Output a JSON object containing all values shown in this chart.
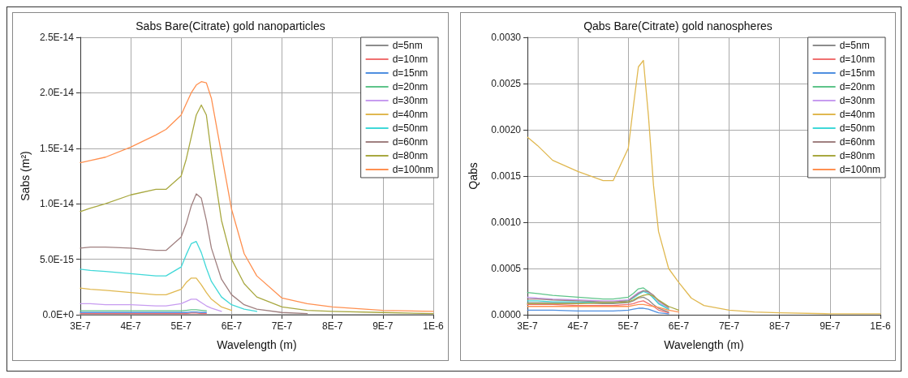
{
  "chart_data": [
    {
      "type": "line",
      "title": "Sabs Bare(Citrate) gold nanoparticles",
      "xlabel": "Wavelength (m)",
      "ylabel": "Sabs (m²)",
      "grid": true,
      "legend": "top right",
      "marker": "none",
      "line_style": "solid",
      "xlim": [
        3e-07,
        1e-06
      ],
      "xticks": [
        {
          "value": 3e-07,
          "label": "3E-7"
        },
        {
          "value": 4e-07,
          "label": "4E-7"
        },
        {
          "value": 5e-07,
          "label": "5E-7"
        },
        {
          "value": 6e-07,
          "label": "6E-7"
        },
        {
          "value": 7e-07,
          "label": "7E-7"
        },
        {
          "value": 8e-07,
          "label": "8E-7"
        },
        {
          "value": 9e-07,
          "label": "9E-7"
        },
        {
          "value": 1e-06,
          "label": "1E-6"
        }
      ],
      "ylim": [
        0,
        2.5e-14
      ],
      "yticks": [
        {
          "value": 0,
          "label": "0.0E+0"
        },
        {
          "value": 5e-15,
          "label": "5.0E-15"
        },
        {
          "value": 1e-14,
          "label": "1.0E-14"
        },
        {
          "value": 1.5e-14,
          "label": "1.5E-14"
        },
        {
          "value": 2e-14,
          "label": "2.0E-14"
        },
        {
          "value": 2.5e-14,
          "label": "2.5E-14"
        }
      ],
      "x": [
        3e-07,
        3.2e-07,
        3.5e-07,
        4e-07,
        4.5e-07,
        4.7e-07,
        5e-07,
        5.1e-07,
        5.2e-07,
        5.3e-07,
        5.4e-07,
        5.5e-07,
        5.6e-07,
        5.8e-07,
        6e-07,
        6.25e-07,
        6.5e-07,
        7e-07,
        7.5e-07,
        8e-07,
        9e-07,
        1e-06
      ],
      "series": [
        {
          "name": "d=5nm",
          "color": "#8c8c8c",
          "values": [
            0,
            0,
            0,
            0,
            0,
            0,
            0,
            0,
            0,
            0,
            0,
            0,
            0,
            0,
            0,
            0,
            0,
            0,
            0,
            0,
            0,
            0
          ]
        },
        {
          "name": "d=10nm",
          "color": "#f07070",
          "values": [
            1e-16,
            1e-16,
            1e-16,
            1e-16,
            1e-16,
            1e-16,
            1e-16,
            1e-16,
            1.5e-16,
            1.5e-16,
            1e-16,
            1e-16,
            null,
            null,
            null,
            null,
            null,
            null,
            null,
            null,
            null,
            null
          ]
        },
        {
          "name": "d=15nm",
          "color": "#4f8fe0",
          "values": [
            2e-16,
            2e-16,
            2e-16,
            2e-16,
            2e-16,
            2e-16,
            2e-16,
            2e-16,
            2.5e-16,
            2.5e-16,
            2e-16,
            2e-16,
            null,
            null,
            null,
            null,
            null,
            null,
            null,
            null,
            null,
            null
          ]
        },
        {
          "name": "d=20nm",
          "color": "#5ec48a",
          "values": [
            3.5e-16,
            3.5e-16,
            3.5e-16,
            3.5e-16,
            3.5e-16,
            3.5e-16,
            3.5e-16,
            4e-16,
            4.5e-16,
            4.5e-16,
            4e-16,
            3.5e-16,
            null,
            null,
            null,
            null,
            null,
            null,
            null,
            null,
            null,
            null
          ]
        },
        {
          "name": "d=30nm",
          "color": "#c79cf0",
          "values": [
            1e-15,
            1e-15,
            9e-16,
            9e-16,
            8e-16,
            8e-16,
            1e-15,
            1.2e-15,
            1.4e-15,
            1.4e-15,
            1.1e-15,
            8e-16,
            6e-16,
            3e-16,
            null,
            null,
            null,
            null,
            null,
            null,
            null,
            null
          ]
        },
        {
          "name": "d=40nm",
          "color": "#e0b850",
          "values": [
            2.4e-15,
            2.3e-15,
            2.2e-15,
            2e-15,
            1.8e-15,
            1.8e-15,
            2.3e-15,
            2.9e-15,
            3.3e-15,
            3.3e-15,
            2.7e-15,
            2e-15,
            1.4e-15,
            7e-16,
            4e-16,
            null,
            null,
            null,
            null,
            null,
            null,
            null
          ]
        },
        {
          "name": "d=50nm",
          "color": "#40d8d8",
          "values": [
            4.1e-15,
            4e-15,
            3.9e-15,
            3.7e-15,
            3.5e-15,
            3.5e-15,
            4.3e-15,
            5.4e-15,
            6.4e-15,
            6.6e-15,
            5.6e-15,
            4.2e-15,
            3e-15,
            1.6e-15,
            9e-16,
            5e-16,
            3e-16,
            null,
            null,
            null,
            null,
            null
          ]
        },
        {
          "name": "d=60nm",
          "color": "#a08080",
          "values": [
            6e-15,
            6.1e-15,
            6.1e-15,
            6e-15,
            5.8e-15,
            5.8e-15,
            7e-15,
            8.2e-15,
            9.8e-15,
            1.09e-14,
            1.05e-14,
            8.5e-15,
            6e-15,
            3.2e-15,
            1.8e-15,
            9e-16,
            5e-16,
            2e-16,
            1e-16,
            null,
            null,
            null
          ]
        },
        {
          "name": "d=80nm",
          "color": "#a8a840",
          "values": [
            9.3e-15,
            9.6e-15,
            1e-14,
            1.08e-14,
            1.13e-14,
            1.13e-14,
            1.25e-14,
            1.4e-14,
            1.6e-14,
            1.8e-14,
            1.89e-14,
            1.8e-14,
            1.45e-14,
            8.5e-15,
            5e-15,
            2.8e-15,
            1.6e-15,
            7e-16,
            4e-16,
            3e-16,
            2e-16,
            1e-16
          ]
        },
        {
          "name": "d=100nm",
          "color": "#ff9050",
          "values": [
            1.37e-14,
            1.39e-14,
            1.42e-14,
            1.51e-14,
            1.62e-14,
            1.67e-14,
            1.8e-14,
            1.9e-14,
            2e-14,
            2.07e-14,
            2.1e-14,
            2.09e-14,
            1.95e-14,
            1.45e-14,
            9.5e-15,
            5.5e-15,
            3.5e-15,
            1.5e-15,
            1e-15,
            7e-16,
            4e-16,
            3e-16
          ]
        }
      ]
    },
    {
      "type": "line",
      "title": "Qabs Bare(Citrate) gold nanospheres",
      "xlabel": "Wavelength (m)",
      "ylabel": "Qabs",
      "grid": true,
      "legend": "top right",
      "marker": "none",
      "line_style": "solid",
      "xlim": [
        3e-07,
        1e-06
      ],
      "xticks": [
        {
          "value": 3e-07,
          "label": "3E-7"
        },
        {
          "value": 4e-07,
          "label": "4E-7"
        },
        {
          "value": 5e-07,
          "label": "5E-7"
        },
        {
          "value": 6e-07,
          "label": "6E-7"
        },
        {
          "value": 7e-07,
          "label": "7E-7"
        },
        {
          "value": 8e-07,
          "label": "8E-7"
        },
        {
          "value": 9e-07,
          "label": "9E-7"
        },
        {
          "value": 1e-06,
          "label": "1E-6"
        }
      ],
      "ylim": [
        0,
        0.003
      ],
      "yticks": [
        {
          "value": 0,
          "label": "0.0000"
        },
        {
          "value": 0.0005,
          "label": "0.0005"
        },
        {
          "value": 0.001,
          "label": "0.0010"
        },
        {
          "value": 0.0015,
          "label": "0.0015"
        },
        {
          "value": 0.002,
          "label": "0.0020"
        },
        {
          "value": 0.0025,
          "label": "0.0025"
        },
        {
          "value": 0.003,
          "label": "0.0030"
        }
      ],
      "x": [
        3e-07,
        3.2e-07,
        3.5e-07,
        4e-07,
        4.5e-07,
        4.7e-07,
        5e-07,
        5.1e-07,
        5.2e-07,
        5.3e-07,
        5.4e-07,
        5.5e-07,
        5.6e-07,
        5.8e-07,
        6e-07,
        6.25e-07,
        6.5e-07,
        7e-07,
        7.5e-07,
        8e-07,
        9e-07,
        1e-06
      ],
      "series": [
        {
          "name": "d=5nm",
          "color": "#8c8c8c",
          "values": [
            0.00013,
            0.00013,
            0.00013,
            0.00013,
            0.00012,
            0.00012,
            0.00013,
            0.00015,
            0.00018,
            0.00019,
            0.00016,
            0.00011,
            7e-05,
            3e-05,
            null,
            null,
            null,
            null,
            null,
            null,
            null,
            null
          ]
        },
        {
          "name": "d=10nm",
          "color": "#f07070",
          "values": [
            0.00011,
            0.00011,
            0.00011,
            0.0001,
            0.0001,
            0.0001,
            0.00011,
            0.00012,
            0.00014,
            0.00015,
            0.00012,
            9e-05,
            5e-05,
            2e-05,
            null,
            null,
            null,
            null,
            null,
            null,
            null,
            null
          ]
        },
        {
          "name": "d=15nm",
          "color": "#4f8fe0",
          "values": [
            5e-05,
            5e-05,
            5e-05,
            4e-05,
            4e-05,
            4e-05,
            5e-05,
            6e-05,
            7e-05,
            7e-05,
            6e-05,
            4e-05,
            2e-05,
            1e-05,
            null,
            null,
            null,
            null,
            null,
            null,
            null,
            null
          ]
        },
        {
          "name": "d=20nm",
          "color": "#5ec48a",
          "values": [
            0.00024,
            0.00023,
            0.00021,
            0.00019,
            0.00017,
            0.00017,
            0.00019,
            0.00023,
            0.00028,
            0.00029,
            0.00025,
            0.00018,
            0.00012,
            6e-05,
            null,
            null,
            null,
            null,
            null,
            null,
            null,
            null
          ]
        },
        {
          "name": "d=30nm",
          "color": "#c79cf0",
          "values": [
            0.00019,
            0.00018,
            0.00017,
            0.00016,
            0.00015,
            0.00015,
            0.00016,
            0.0002,
            0.00024,
            0.00026,
            0.00024,
            0.00019,
            0.00013,
            7e-05,
            null,
            null,
            null,
            null,
            null,
            null,
            null,
            null
          ]
        },
        {
          "name": "d=40nm",
          "color": "#e0b850",
          "values": [
            0.00192,
            0.00183,
            0.00167,
            0.00155,
            0.00145,
            0.00145,
            0.0018,
            0.00225,
            0.00268,
            0.00275,
            0.00215,
            0.0014,
            0.0009,
            0.0005,
            0.00035,
            0.00018,
            0.0001,
            5e-05,
            3e-05,
            2e-05,
            1e-05,
            1e-05
          ]
        },
        {
          "name": "d=50nm",
          "color": "#40d8d8",
          "values": [
            0.00015,
            0.00015,
            0.00014,
            0.00014,
            0.00013,
            0.00013,
            0.00015,
            0.00018,
            0.00022,
            0.00025,
            0.00023,
            0.00018,
            0.00012,
            6e-05,
            null,
            null,
            null,
            null,
            null,
            null,
            null,
            null
          ]
        },
        {
          "name": "d=60nm",
          "color": "#a08080",
          "values": [
            0.00017,
            0.00017,
            0.00016,
            0.00015,
            0.00014,
            0.00014,
            0.00015,
            0.00019,
            0.00023,
            0.00026,
            0.00025,
            0.00021,
            0.00015,
            8e-05,
            null,
            null,
            null,
            null,
            null,
            null,
            null,
            null
          ]
        },
        {
          "name": "d=80nm",
          "color": "#a8a840",
          "values": [
            0.00012,
            0.00012,
            0.00012,
            0.00012,
            0.00013,
            0.00013,
            0.00014,
            0.00016,
            0.00019,
            0.00021,
            0.00022,
            0.0002,
            0.00016,
            9e-05,
            5e-05,
            null,
            null,
            null,
            null,
            null,
            null,
            null
          ]
        },
        {
          "name": "d=100nm",
          "color": "#ff9050",
          "values": [
            9e-05,
            9e-05,
            9e-05,
            9e-05,
            9e-05,
            9e-05,
            9e-05,
            0.0001,
            0.00011,
            0.00011,
            0.0001,
            9e-05,
            8e-05,
            5e-05,
            3e-05,
            null,
            null,
            null,
            null,
            null,
            null,
            null
          ]
        }
      ]
    }
  ]
}
